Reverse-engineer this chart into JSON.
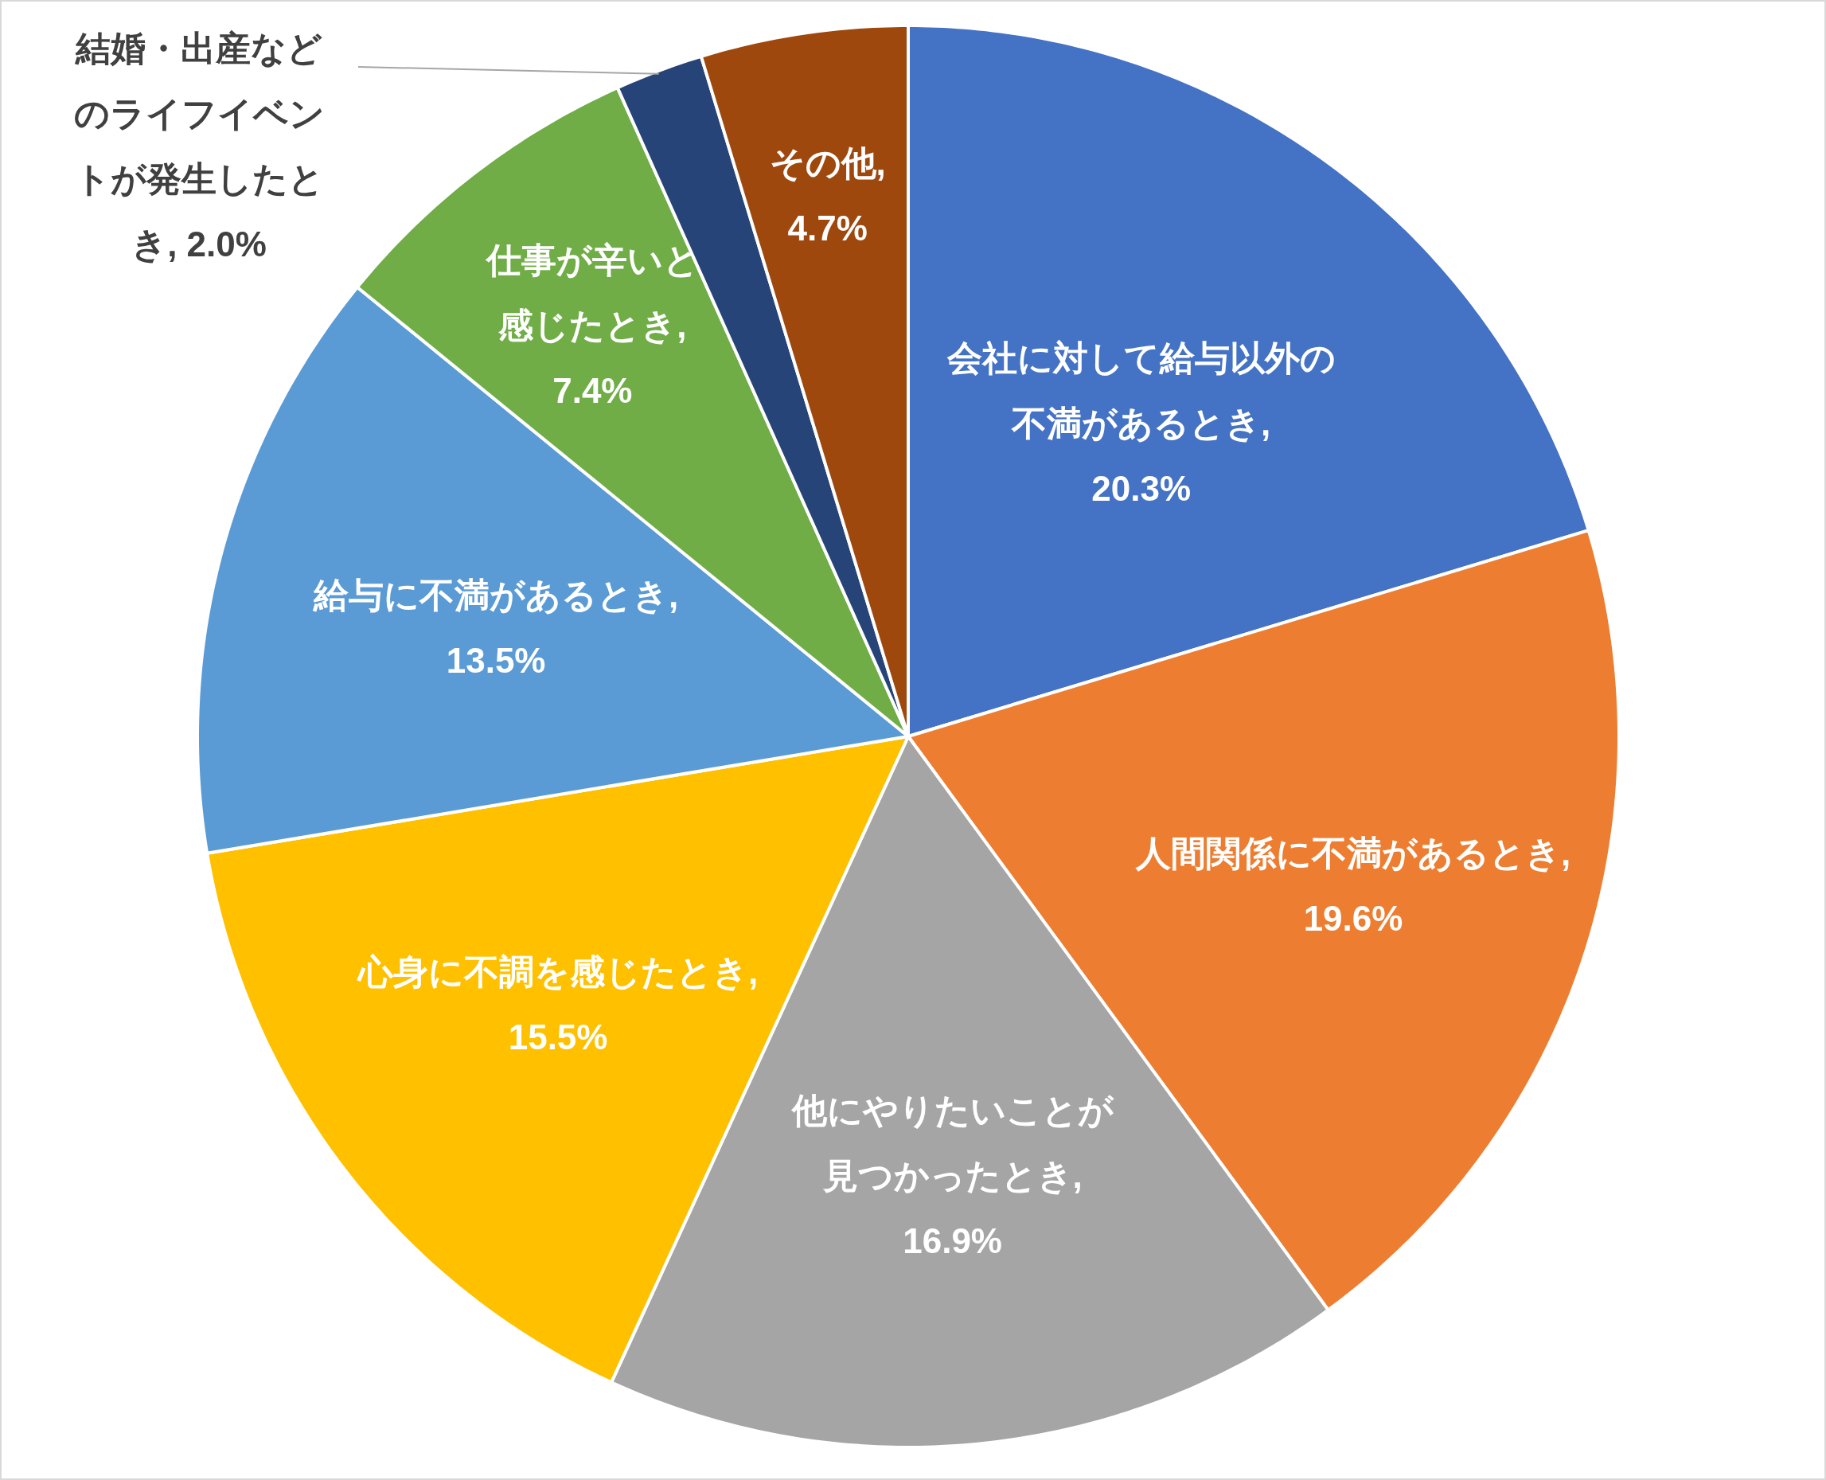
{
  "chart_data": {
    "type": "pie",
    "categories": [
      "会社に対して給与以外の不満があるとき",
      "人間関係に不満があるとき",
      "他にやりたいことが見つかったとき",
      "心身に不調を感じたとき",
      "給与に不満があるとき",
      "仕事が辛いと感じたとき",
      "結婚・出産などのライフイベントが発生したとき",
      "その他"
    ],
    "values": [
      20.3,
      19.6,
      16.9,
      15.5,
      13.5,
      7.4,
      2.0,
      4.7
    ],
    "value_labels": [
      ", 20.3%",
      ", 19.6%",
      ", 16.9%",
      ", 15.5%",
      ", 13.5%",
      ", 7.4%",
      ", 2.0%",
      ", 4.7%"
    ],
    "colors": [
      "#4472c4",
      "#ed7d31",
      "#a5a5a5",
      "#ffc000",
      "#5b9bd5",
      "#70ad47",
      "#264478",
      "#9e480e"
    ]
  }
}
